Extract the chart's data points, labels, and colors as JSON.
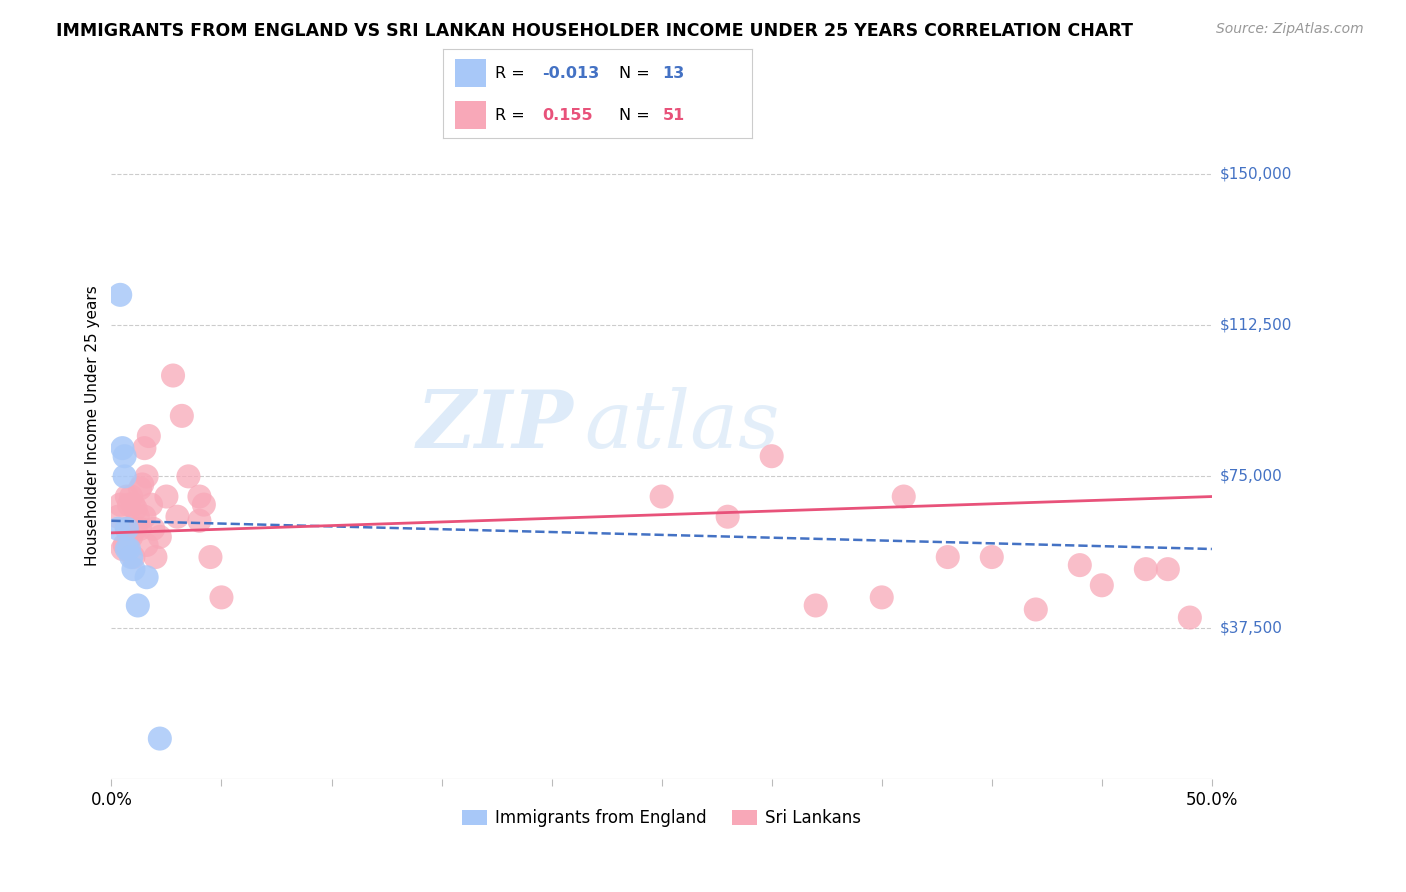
{
  "title": "IMMIGRANTS FROM ENGLAND VS SRI LANKAN HOUSEHOLDER INCOME UNDER 25 YEARS CORRELATION CHART",
  "source": "Source: ZipAtlas.com",
  "ylabel": "Householder Income Under 25 years",
  "xlim": [
    0.0,
    0.5
  ],
  "ylim": [
    0,
    175000
  ],
  "yticks": [
    37500,
    75000,
    112500,
    150000
  ],
  "ytick_labels": [
    "$37,500",
    "$75,000",
    "$112,500",
    "$150,000"
  ],
  "legend_r_england": "-0.013",
  "legend_n_england": "13",
  "legend_r_srilanka": "0.155",
  "legend_n_srilanka": "51",
  "england_color": "#a8c8f8",
  "srilanka_color": "#f8a8b8",
  "england_line_color": "#4472c4",
  "srilanka_line_color": "#e8527a",
  "background_color": "#ffffff",
  "watermark_zip": "ZIP",
  "watermark_atlas": "atlas",
  "england_x": [
    0.003,
    0.004,
    0.005,
    0.006,
    0.006,
    0.007,
    0.007,
    0.008,
    0.009,
    0.01,
    0.012,
    0.016,
    0.022
  ],
  "england_y": [
    62000,
    120000,
    82000,
    80000,
    75000,
    62000,
    57000,
    57000,
    55000,
    52000,
    43000,
    50000,
    10000
  ],
  "srilanka_x": [
    0.003,
    0.004,
    0.005,
    0.006,
    0.007,
    0.007,
    0.008,
    0.008,
    0.009,
    0.009,
    0.01,
    0.01,
    0.011,
    0.011,
    0.012,
    0.013,
    0.013,
    0.014,
    0.015,
    0.015,
    0.016,
    0.016,
    0.017,
    0.018,
    0.019,
    0.02,
    0.022,
    0.025,
    0.028,
    0.03,
    0.032,
    0.035,
    0.04,
    0.04,
    0.042,
    0.045,
    0.05,
    0.25,
    0.28,
    0.3,
    0.32,
    0.35,
    0.36,
    0.38,
    0.4,
    0.42,
    0.44,
    0.45,
    0.47,
    0.48,
    0.49
  ],
  "srilanka_y": [
    65000,
    68000,
    57000,
    58000,
    70000,
    62000,
    68000,
    60000,
    70000,
    60000,
    68000,
    55000,
    67000,
    62000,
    65000,
    72000,
    62000,
    73000,
    82000,
    65000,
    75000,
    58000,
    85000,
    68000,
    62000,
    55000,
    60000,
    70000,
    100000,
    65000,
    90000,
    75000,
    70000,
    64000,
    68000,
    55000,
    45000,
    70000,
    65000,
    80000,
    43000,
    45000,
    70000,
    55000,
    55000,
    42000,
    53000,
    48000,
    52000,
    52000,
    40000
  ],
  "england_line_x0": 0.0,
  "england_line_y0": 64000,
  "england_line_x1": 0.5,
  "england_line_y1": 57000,
  "srilanka_line_x0": 0.0,
  "srilanka_line_y0": 61000,
  "srilanka_line_x1": 0.5,
  "srilanka_line_y1": 70000
}
